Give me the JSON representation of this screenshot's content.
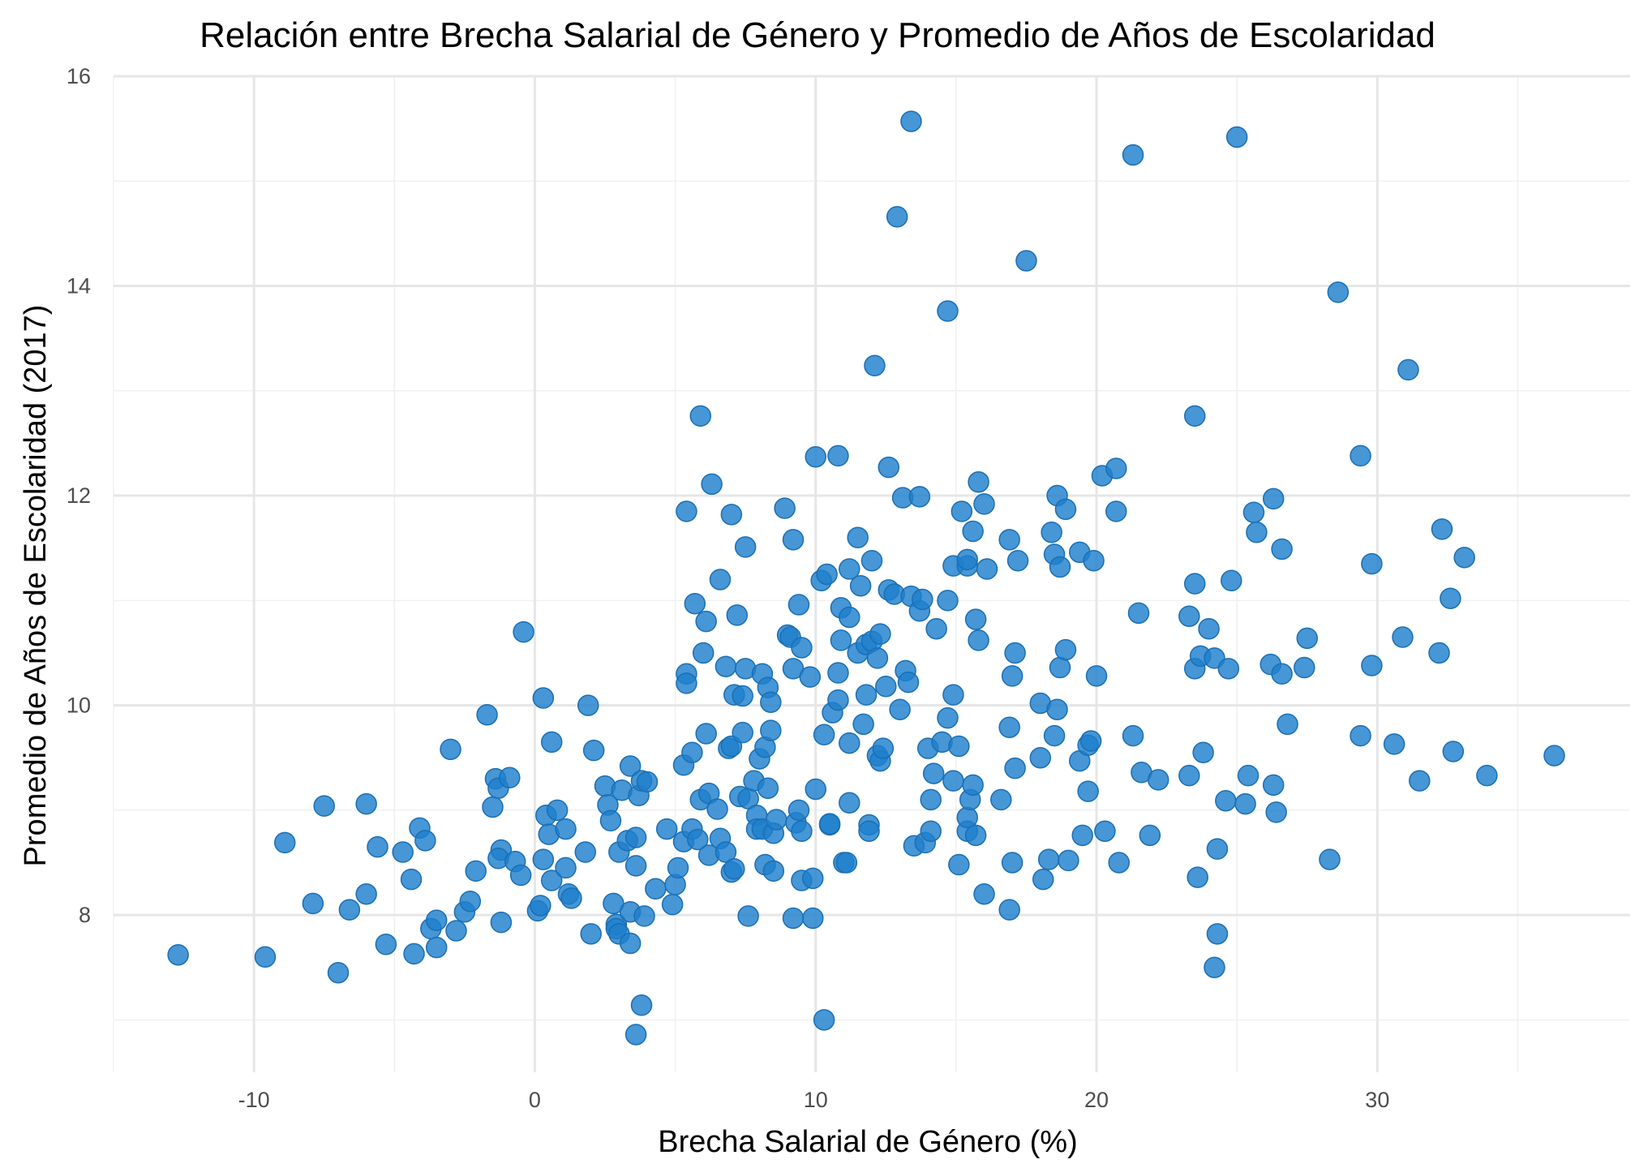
{
  "chart_data": {
    "type": "scatter",
    "title": "Relación entre Brecha Salarial de Género y Promedio de Años de Escolaridad",
    "xlabel": "Brecha Salarial de Género (%)",
    "ylabel": "Promedio de Años de Escolaridad (2017)",
    "xlim": [
      -15,
      39
    ],
    "ylim": [
      6.5,
      16
    ],
    "x_ticks": [
      -10,
      0,
      10,
      20,
      30
    ],
    "y_ticks": [
      8,
      10,
      12,
      14,
      16
    ],
    "x_tick_labels": [
      "-10",
      "0",
      "10",
      "20",
      "30"
    ],
    "y_tick_labels": [
      "8",
      "10",
      "12",
      "14",
      "16"
    ],
    "grid": true,
    "legend": "none",
    "color": "#1f7fcc",
    "points": [
      [
        -12.7,
        7.62
      ],
      [
        -9.6,
        7.6
      ],
      [
        -8.9,
        8.69
      ],
      [
        -7.9,
        8.11
      ],
      [
        -7.5,
        9.04
      ],
      [
        -7.0,
        7.45
      ],
      [
        -6.6,
        8.05
      ],
      [
        -6.0,
        9.06
      ],
      [
        -6.0,
        8.2
      ],
      [
        -5.6,
        8.65
      ],
      [
        -5.3,
        7.72
      ],
      [
        -4.7,
        8.6
      ],
      [
        -4.4,
        8.34
      ],
      [
        -4.1,
        8.83
      ],
      [
        -3.9,
        8.71
      ],
      [
        -3.7,
        7.87
      ],
      [
        -3.5,
        7.95
      ],
      [
        -3.5,
        7.69
      ],
      [
        -4.3,
        7.63
      ],
      [
        -3.0,
        9.58
      ],
      [
        -2.8,
        7.85
      ],
      [
        -2.5,
        8.03
      ],
      [
        -2.3,
        8.13
      ],
      [
        -2.1,
        8.42
      ],
      [
        -1.7,
        9.91
      ],
      [
        -1.5,
        9.03
      ],
      [
        -1.4,
        9.3
      ],
      [
        -1.3,
        9.21
      ],
      [
        -1.2,
        8.62
      ],
      [
        -1.3,
        8.54
      ],
      [
        -1.2,
        7.93
      ],
      [
        -0.9,
        9.31
      ],
      [
        -0.7,
        8.51
      ],
      [
        -0.5,
        8.38
      ],
      [
        -0.4,
        10.7
      ],
      [
        0.1,
        8.04
      ],
      [
        0.2,
        8.09
      ],
      [
        0.3,
        8.53
      ],
      [
        0.3,
        10.07
      ],
      [
        0.4,
        8.95
      ],
      [
        0.5,
        8.77
      ],
      [
        0.6,
        8.33
      ],
      [
        0.6,
        9.65
      ],
      [
        0.8,
        9.0
      ],
      [
        1.1,
        8.45
      ],
      [
        1.1,
        8.82
      ],
      [
        1.2,
        8.2
      ],
      [
        1.3,
        8.16
      ],
      [
        1.8,
        8.6
      ],
      [
        1.9,
        10.0
      ],
      [
        2.0,
        7.82
      ],
      [
        2.1,
        9.57
      ],
      [
        2.5,
        9.23
      ],
      [
        2.6,
        9.05
      ],
      [
        2.7,
        8.9
      ],
      [
        2.8,
        8.11
      ],
      [
        2.9,
        7.91
      ],
      [
        2.9,
        7.87
      ],
      [
        3.0,
        8.6
      ],
      [
        3.0,
        7.82
      ],
      [
        3.1,
        9.19
      ],
      [
        3.3,
        8.71
      ],
      [
        3.4,
        9.42
      ],
      [
        3.4,
        8.03
      ],
      [
        3.4,
        7.73
      ],
      [
        3.6,
        8.74
      ],
      [
        3.6,
        8.47
      ],
      [
        3.7,
        9.14
      ],
      [
        3.8,
        9.28
      ],
      [
        3.6,
        6.86
      ],
      [
        3.8,
        7.14
      ],
      [
        3.9,
        7.99
      ],
      [
        4.0,
        9.27
      ],
      [
        4.3,
        8.25
      ],
      [
        4.7,
        8.82
      ],
      [
        4.9,
        8.1
      ],
      [
        5.0,
        8.29
      ],
      [
        5.1,
        8.45
      ],
      [
        5.3,
        8.7
      ],
      [
        5.3,
        9.43
      ],
      [
        5.4,
        10.3
      ],
      [
        5.4,
        10.21
      ],
      [
        5.4,
        11.85
      ],
      [
        5.6,
        9.55
      ],
      [
        5.6,
        8.82
      ],
      [
        5.7,
        10.97
      ],
      [
        5.8,
        8.72
      ],
      [
        5.9,
        12.76
      ],
      [
        5.9,
        9.1
      ],
      [
        6.0,
        10.5
      ],
      [
        6.1,
        10.8
      ],
      [
        6.1,
        9.73
      ],
      [
        6.2,
        8.57
      ],
      [
        6.2,
        9.16
      ],
      [
        6.3,
        12.11
      ],
      [
        6.5,
        9.01
      ],
      [
        6.6,
        11.2
      ],
      [
        6.6,
        8.73
      ],
      [
        6.8,
        10.37
      ],
      [
        6.8,
        8.6
      ],
      [
        6.9,
        9.59
      ],
      [
        7.0,
        9.61
      ],
      [
        7.0,
        11.82
      ],
      [
        7.0,
        8.41
      ],
      [
        7.1,
        10.1
      ],
      [
        7.1,
        8.44
      ],
      [
        7.2,
        10.86
      ],
      [
        7.3,
        9.13
      ],
      [
        7.4,
        10.09
      ],
      [
        7.4,
        9.74
      ],
      [
        7.5,
        10.35
      ],
      [
        7.5,
        11.51
      ],
      [
        7.6,
        9.11
      ],
      [
        7.6,
        7.99
      ],
      [
        7.8,
        9.28
      ],
      [
        7.9,
        8.95
      ],
      [
        7.9,
        8.82
      ],
      [
        8.0,
        9.49
      ],
      [
        8.1,
        8.82
      ],
      [
        8.1,
        10.3
      ],
      [
        8.2,
        9.6
      ],
      [
        8.2,
        8.48
      ],
      [
        8.3,
        10.17
      ],
      [
        8.3,
        9.21
      ],
      [
        8.4,
        10.03
      ],
      [
        8.4,
        9.76
      ],
      [
        8.5,
        8.42
      ],
      [
        8.5,
        8.78
      ],
      [
        8.6,
        8.91
      ],
      [
        8.9,
        11.88
      ],
      [
        9.0,
        10.67
      ],
      [
        9.1,
        10.65
      ],
      [
        9.2,
        11.58
      ],
      [
        9.2,
        10.35
      ],
      [
        9.2,
        7.97
      ],
      [
        9.3,
        8.88
      ],
      [
        9.4,
        10.96
      ],
      [
        9.4,
        9.0
      ],
      [
        9.5,
        8.33
      ],
      [
        9.5,
        8.8
      ],
      [
        9.5,
        10.55
      ],
      [
        9.8,
        10.27
      ],
      [
        9.9,
        7.97
      ],
      [
        9.9,
        8.35
      ],
      [
        10.0,
        12.37
      ],
      [
        10.0,
        9.2
      ],
      [
        10.2,
        11.19
      ],
      [
        10.3,
        9.72
      ],
      [
        10.4,
        11.25
      ],
      [
        10.3,
        7.0
      ],
      [
        10.5,
        8.86
      ],
      [
        10.5,
        8.87
      ],
      [
        10.6,
        9.93
      ],
      [
        10.8,
        12.38
      ],
      [
        10.8,
        10.05
      ],
      [
        10.8,
        10.31
      ],
      [
        10.9,
        10.93
      ],
      [
        10.9,
        10.62
      ],
      [
        11.0,
        8.5
      ],
      [
        11.1,
        8.5
      ],
      [
        11.2,
        11.3
      ],
      [
        11.2,
        10.84
      ],
      [
        11.2,
        9.64
      ],
      [
        11.2,
        9.07
      ],
      [
        11.5,
        10.5
      ],
      [
        11.5,
        11.6
      ],
      [
        11.6,
        11.14
      ],
      [
        11.7,
        9.82
      ],
      [
        11.8,
        10.58
      ],
      [
        11.8,
        10.1
      ],
      [
        11.9,
        8.86
      ],
      [
        11.9,
        8.8
      ],
      [
        12.0,
        10.61
      ],
      [
        12.0,
        11.38
      ],
      [
        12.1,
        13.24
      ],
      [
        12.2,
        9.52
      ],
      [
        12.2,
        10.45
      ],
      [
        12.3,
        10.68
      ],
      [
        12.3,
        9.47
      ],
      [
        12.4,
        9.59
      ],
      [
        12.5,
        10.18
      ],
      [
        12.6,
        11.1
      ],
      [
        12.6,
        12.27
      ],
      [
        12.8,
        11.06
      ],
      [
        12.9,
        14.66
      ],
      [
        13.0,
        9.96
      ],
      [
        13.1,
        11.98
      ],
      [
        13.2,
        10.33
      ],
      [
        13.3,
        10.22
      ],
      [
        13.4,
        11.04
      ],
      [
        13.4,
        15.57
      ],
      [
        13.5,
        8.66
      ],
      [
        13.7,
        11.99
      ],
      [
        13.7,
        10.9
      ],
      [
        13.8,
        11.01
      ],
      [
        13.9,
        8.69
      ],
      [
        14.0,
        9.59
      ],
      [
        14.1,
        9.1
      ],
      [
        14.1,
        8.8
      ],
      [
        14.2,
        9.35
      ],
      [
        14.3,
        10.73
      ],
      [
        14.5,
        9.65
      ],
      [
        14.7,
        13.76
      ],
      [
        14.7,
        11.0
      ],
      [
        14.7,
        9.88
      ],
      [
        14.9,
        11.33
      ],
      [
        14.9,
        10.1
      ],
      [
        14.9,
        9.28
      ],
      [
        15.1,
        9.61
      ],
      [
        15.1,
        8.48
      ],
      [
        15.2,
        11.85
      ],
      [
        15.4,
        8.8
      ],
      [
        15.4,
        8.93
      ],
      [
        15.4,
        11.33
      ],
      [
        15.4,
        11.39
      ],
      [
        15.5,
        9.1
      ],
      [
        15.6,
        9.24
      ],
      [
        15.6,
        11.66
      ],
      [
        15.7,
        10.82
      ],
      [
        15.7,
        8.76
      ],
      [
        15.8,
        10.62
      ],
      [
        15.8,
        12.13
      ],
      [
        16.0,
        11.92
      ],
      [
        16.0,
        8.2
      ],
      [
        16.1,
        11.3
      ],
      [
        16.6,
        9.1
      ],
      [
        16.9,
        9.79
      ],
      [
        16.9,
        11.58
      ],
      [
        16.9,
        8.05
      ],
      [
        17.0,
        10.28
      ],
      [
        17.0,
        8.5
      ],
      [
        17.1,
        10.5
      ],
      [
        17.1,
        9.4
      ],
      [
        17.2,
        11.38
      ],
      [
        17.5,
        14.24
      ],
      [
        18.0,
        10.02
      ],
      [
        18.0,
        9.5
      ],
      [
        18.1,
        8.34
      ],
      [
        18.3,
        8.53
      ],
      [
        18.4,
        11.65
      ],
      [
        18.5,
        11.44
      ],
      [
        18.5,
        9.71
      ],
      [
        18.6,
        12.0
      ],
      [
        18.6,
        9.96
      ],
      [
        18.7,
        10.36
      ],
      [
        18.7,
        11.32
      ],
      [
        18.9,
        11.87
      ],
      [
        18.9,
        10.53
      ],
      [
        19.0,
        8.52
      ],
      [
        19.4,
        11.46
      ],
      [
        19.4,
        9.47
      ],
      [
        19.5,
        8.76
      ],
      [
        19.7,
        9.18
      ],
      [
        19.7,
        9.62
      ],
      [
        19.8,
        9.66
      ],
      [
        19.9,
        11.38
      ],
      [
        20.0,
        10.28
      ],
      [
        20.2,
        12.19
      ],
      [
        20.3,
        8.8
      ],
      [
        20.7,
        12.26
      ],
      [
        20.7,
        11.85
      ],
      [
        20.8,
        8.5
      ],
      [
        21.3,
        9.71
      ],
      [
        21.3,
        15.25
      ],
      [
        21.5,
        10.88
      ],
      [
        21.6,
        9.36
      ],
      [
        21.9,
        8.76
      ],
      [
        22.2,
        9.29
      ],
      [
        23.3,
        9.33
      ],
      [
        23.3,
        10.85
      ],
      [
        23.5,
        11.16
      ],
      [
        23.5,
        12.76
      ],
      [
        23.5,
        10.35
      ],
      [
        23.6,
        8.36
      ],
      [
        23.7,
        10.47
      ],
      [
        23.8,
        9.55
      ],
      [
        24.0,
        10.73
      ],
      [
        24.2,
        7.5
      ],
      [
        24.2,
        10.45
      ],
      [
        24.3,
        7.82
      ],
      [
        24.3,
        8.63
      ],
      [
        24.6,
        9.09
      ],
      [
        24.7,
        10.35
      ],
      [
        24.8,
        11.19
      ],
      [
        25.0,
        15.42
      ],
      [
        25.3,
        9.06
      ],
      [
        25.4,
        9.33
      ],
      [
        25.6,
        11.84
      ],
      [
        25.7,
        11.65
      ],
      [
        26.2,
        10.39
      ],
      [
        26.3,
        11.97
      ],
      [
        26.3,
        9.24
      ],
      [
        26.4,
        8.98
      ],
      [
        26.6,
        10.3
      ],
      [
        26.6,
        11.49
      ],
      [
        26.8,
        9.82
      ],
      [
        27.4,
        10.36
      ],
      [
        27.5,
        10.64
      ],
      [
        28.3,
        8.53
      ],
      [
        28.6,
        13.94
      ],
      [
        29.4,
        12.38
      ],
      [
        29.4,
        9.71
      ],
      [
        29.8,
        11.35
      ],
      [
        29.8,
        10.38
      ],
      [
        30.6,
        9.63
      ],
      [
        30.9,
        10.65
      ],
      [
        31.1,
        13.2
      ],
      [
        31.5,
        9.28
      ],
      [
        32.3,
        11.68
      ],
      [
        32.2,
        10.5
      ],
      [
        32.6,
        11.02
      ],
      [
        32.7,
        9.56
      ],
      [
        33.1,
        11.41
      ],
      [
        33.9,
        9.33
      ],
      [
        36.3,
        9.52
      ]
    ]
  }
}
